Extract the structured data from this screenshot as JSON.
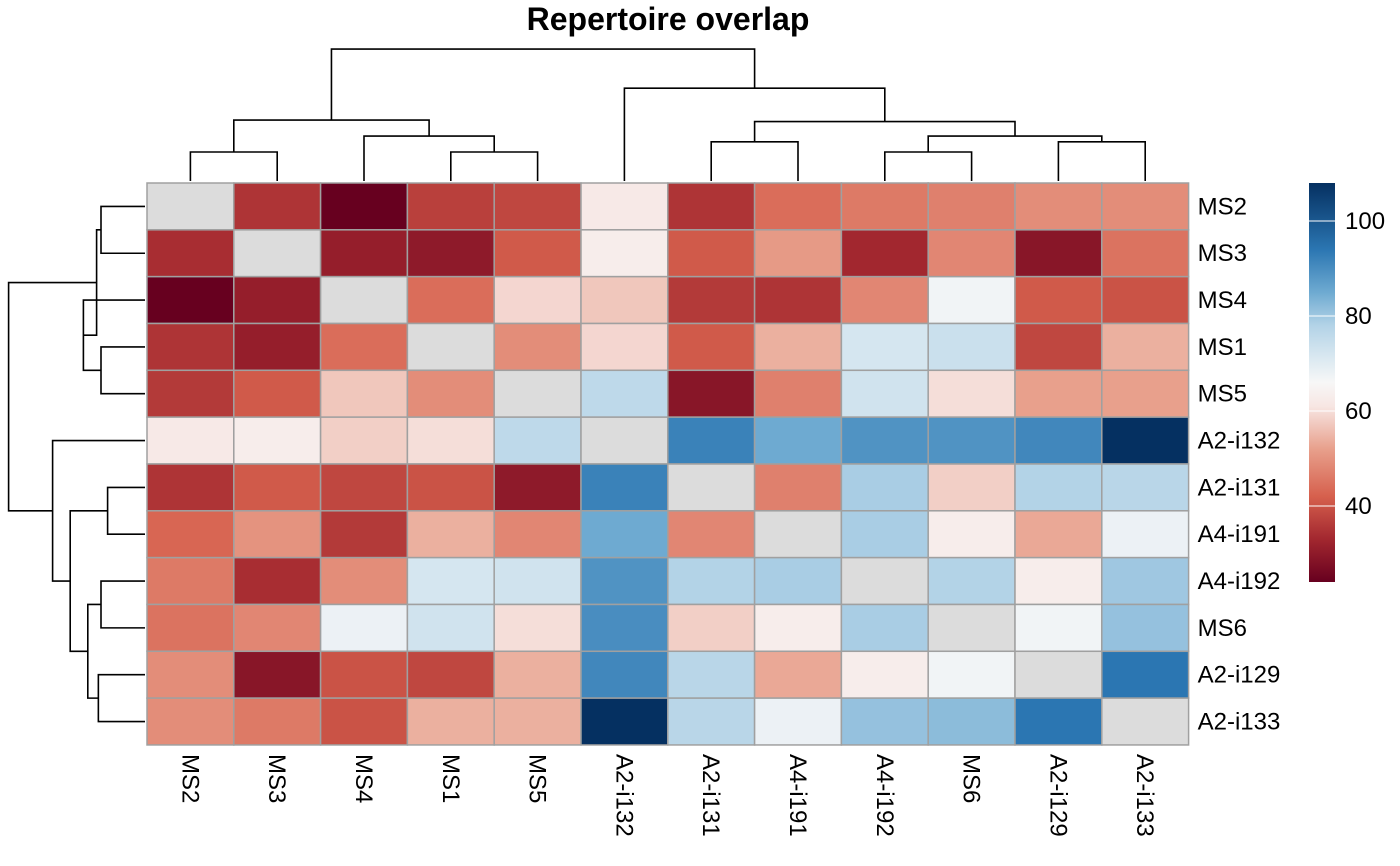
{
  "chart_data": {
    "type": "heatmap",
    "title": "Repertoire overlap",
    "rows": [
      "MS2",
      "MS3",
      "MS4",
      "MS1",
      "MS5",
      "A2-i132",
      "A2-i131",
      "A4-i191",
      "A4-i192",
      "MS6",
      "A2-i129",
      "A2-i133"
    ],
    "columns": [
      "MS2",
      "MS3",
      "MS4",
      "MS1",
      "MS5",
      "A2-i132",
      "A2-i131",
      "A4-i191",
      "A4-i192",
      "MS6",
      "A2-i129",
      "A2-i133"
    ],
    "values": [
      [
        null,
        35,
        24,
        37,
        38,
        62,
        35,
        44,
        46,
        47,
        49,
        49
      ],
      [
        34,
        null,
        31,
        30,
        41,
        63,
        41,
        51,
        33,
        48,
        29,
        45
      ],
      [
        24,
        31,
        null,
        44,
        59,
        57,
        36,
        35,
        48,
        67,
        41,
        40
      ],
      [
        35,
        31,
        44,
        null,
        49,
        59,
        41,
        54,
        72,
        74,
        38,
        54
      ],
      [
        36,
        41,
        57,
        49,
        null,
        76,
        29,
        47,
        73,
        60,
        52,
        52
      ],
      [
        62,
        63,
        58,
        60,
        76,
        null,
        92,
        85,
        89,
        89,
        91,
        108
      ],
      [
        35,
        41,
        38,
        40,
        30,
        92,
        null,
        47,
        79,
        58,
        78,
        77
      ],
      [
        43,
        50,
        36,
        54,
        48,
        85,
        48,
        null,
        79,
        63,
        53,
        68
      ],
      [
        46,
        34,
        49,
        72,
        73,
        89,
        78,
        79,
        null,
        78,
        63,
        80
      ],
      [
        45,
        48,
        68,
        73,
        60,
        90,
        58,
        63,
        79,
        null,
        67,
        81
      ],
      [
        49,
        29,
        40,
        38,
        54,
        91,
        77,
        53,
        63,
        67,
        null,
        94
      ],
      [
        49,
        46,
        40,
        54,
        54,
        108,
        77,
        68,
        81,
        82,
        94,
        null
      ]
    ],
    "diagonal": "grey",
    "color_scale": {
      "min": 24,
      "max": 108,
      "stops": [
        {
          "value": 24,
          "color": "#67001f"
        },
        {
          "value": 33,
          "color": "#a2272f"
        },
        {
          "value": 42,
          "color": "#d6604d"
        },
        {
          "value": 52,
          "color": "#e8a08c"
        },
        {
          "value": 61,
          "color": "#f7e6e3"
        },
        {
          "value": 66,
          "color": "#f7f7f7"
        },
        {
          "value": 71,
          "color": "#dbe9f1"
        },
        {
          "value": 78,
          "color": "#b3d3e7"
        },
        {
          "value": 85,
          "color": "#6eaad1"
        },
        {
          "value": 94,
          "color": "#2b76b2"
        },
        {
          "value": 108,
          "color": "#053061"
        }
      ],
      "diagonal_color": "#dcdcdc",
      "cell_border": "#a0a0a0"
    },
    "legend": {
      "position": "right",
      "ticks": [
        40,
        60,
        80,
        100
      ]
    },
    "column_dendrogram": [
      {
        "a": 0,
        "b": 1,
        "h": 1
      },
      {
        "a": 3,
        "b": 4,
        "h": 1
      },
      {
        "a": 2,
        "b": "n1",
        "h": 1.55
      },
      {
        "a": "n0",
        "b": "n2",
        "h": 2.1
      },
      {
        "a": 6,
        "b": 7,
        "h": 1.35
      },
      {
        "a": 8,
        "b": 9,
        "h": 1
      },
      {
        "a": 10,
        "b": 11,
        "h": 1.35
      },
      {
        "a": "n5",
        "b": "n6",
        "h": 1.55
      },
      {
        "a": "n4",
        "b": "n7",
        "h": 2.05
      },
      {
        "a": 5,
        "b": "n8",
        "h": 3.2
      },
      {
        "a": "n3",
        "b": "n9",
        "h": 4.55
      }
    ],
    "row_dendrogram": [
      {
        "a": 0,
        "b": 1,
        "h": 1
      },
      {
        "a": 3,
        "b": 4,
        "h": 1
      },
      {
        "a": 2,
        "b": "n1",
        "h": 1.4
      },
      {
        "a": "n0",
        "b": "n2",
        "h": 1.1
      },
      {
        "a": 6,
        "b": 7,
        "h": 0.85
      },
      {
        "a": 8,
        "b": 9,
        "h": 1
      },
      {
        "a": 10,
        "b": 11,
        "h": 1.06
      },
      {
        "a": "n5",
        "b": "n6",
        "h": 1.3
      },
      {
        "a": "n4",
        "b": "n7",
        "h": 1.7
      },
      {
        "a": 5,
        "b": "n8",
        "h": 2.1
      },
      {
        "a": "n3",
        "b": "n9",
        "h": 3.1
      }
    ]
  }
}
